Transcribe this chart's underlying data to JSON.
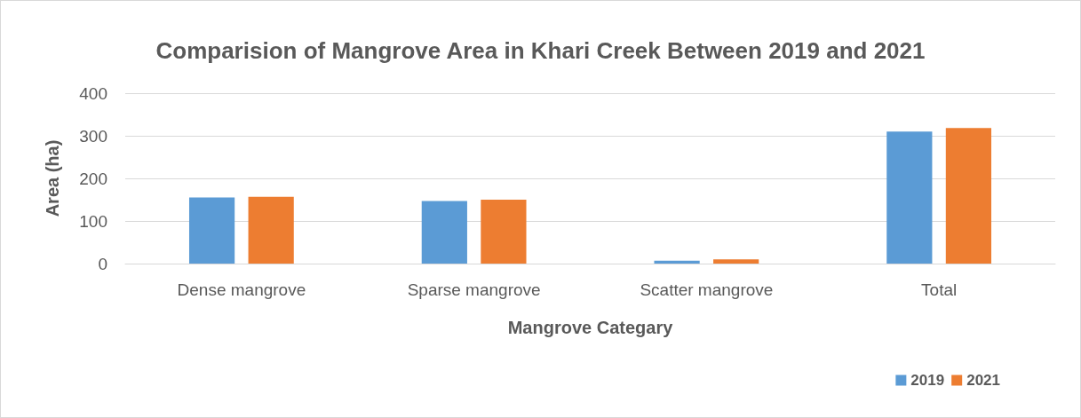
{
  "chart_data": {
    "type": "bar",
    "title": "Comparision of Mangrove Area in Khari Creek Between 2019 and 2021",
    "xlabel": "Mangrove Categary",
    "ylabel": "Area (ha)",
    "categories": [
      "Dense mangrove",
      "Sparse mangrove",
      "Scatter mangrove",
      "Total"
    ],
    "series": [
      {
        "name": "2019",
        "color": "#5b9bd5",
        "values": [
          155,
          147,
          7,
          310
        ]
      },
      {
        "name": "2021",
        "color": "#ed7d31",
        "values": [
          157,
          150,
          10,
          318
        ]
      }
    ],
    "ylim": [
      0,
      400
    ],
    "yticks": [
      0,
      100,
      200,
      300,
      400
    ],
    "grid": "y",
    "legend": "bottom right"
  }
}
